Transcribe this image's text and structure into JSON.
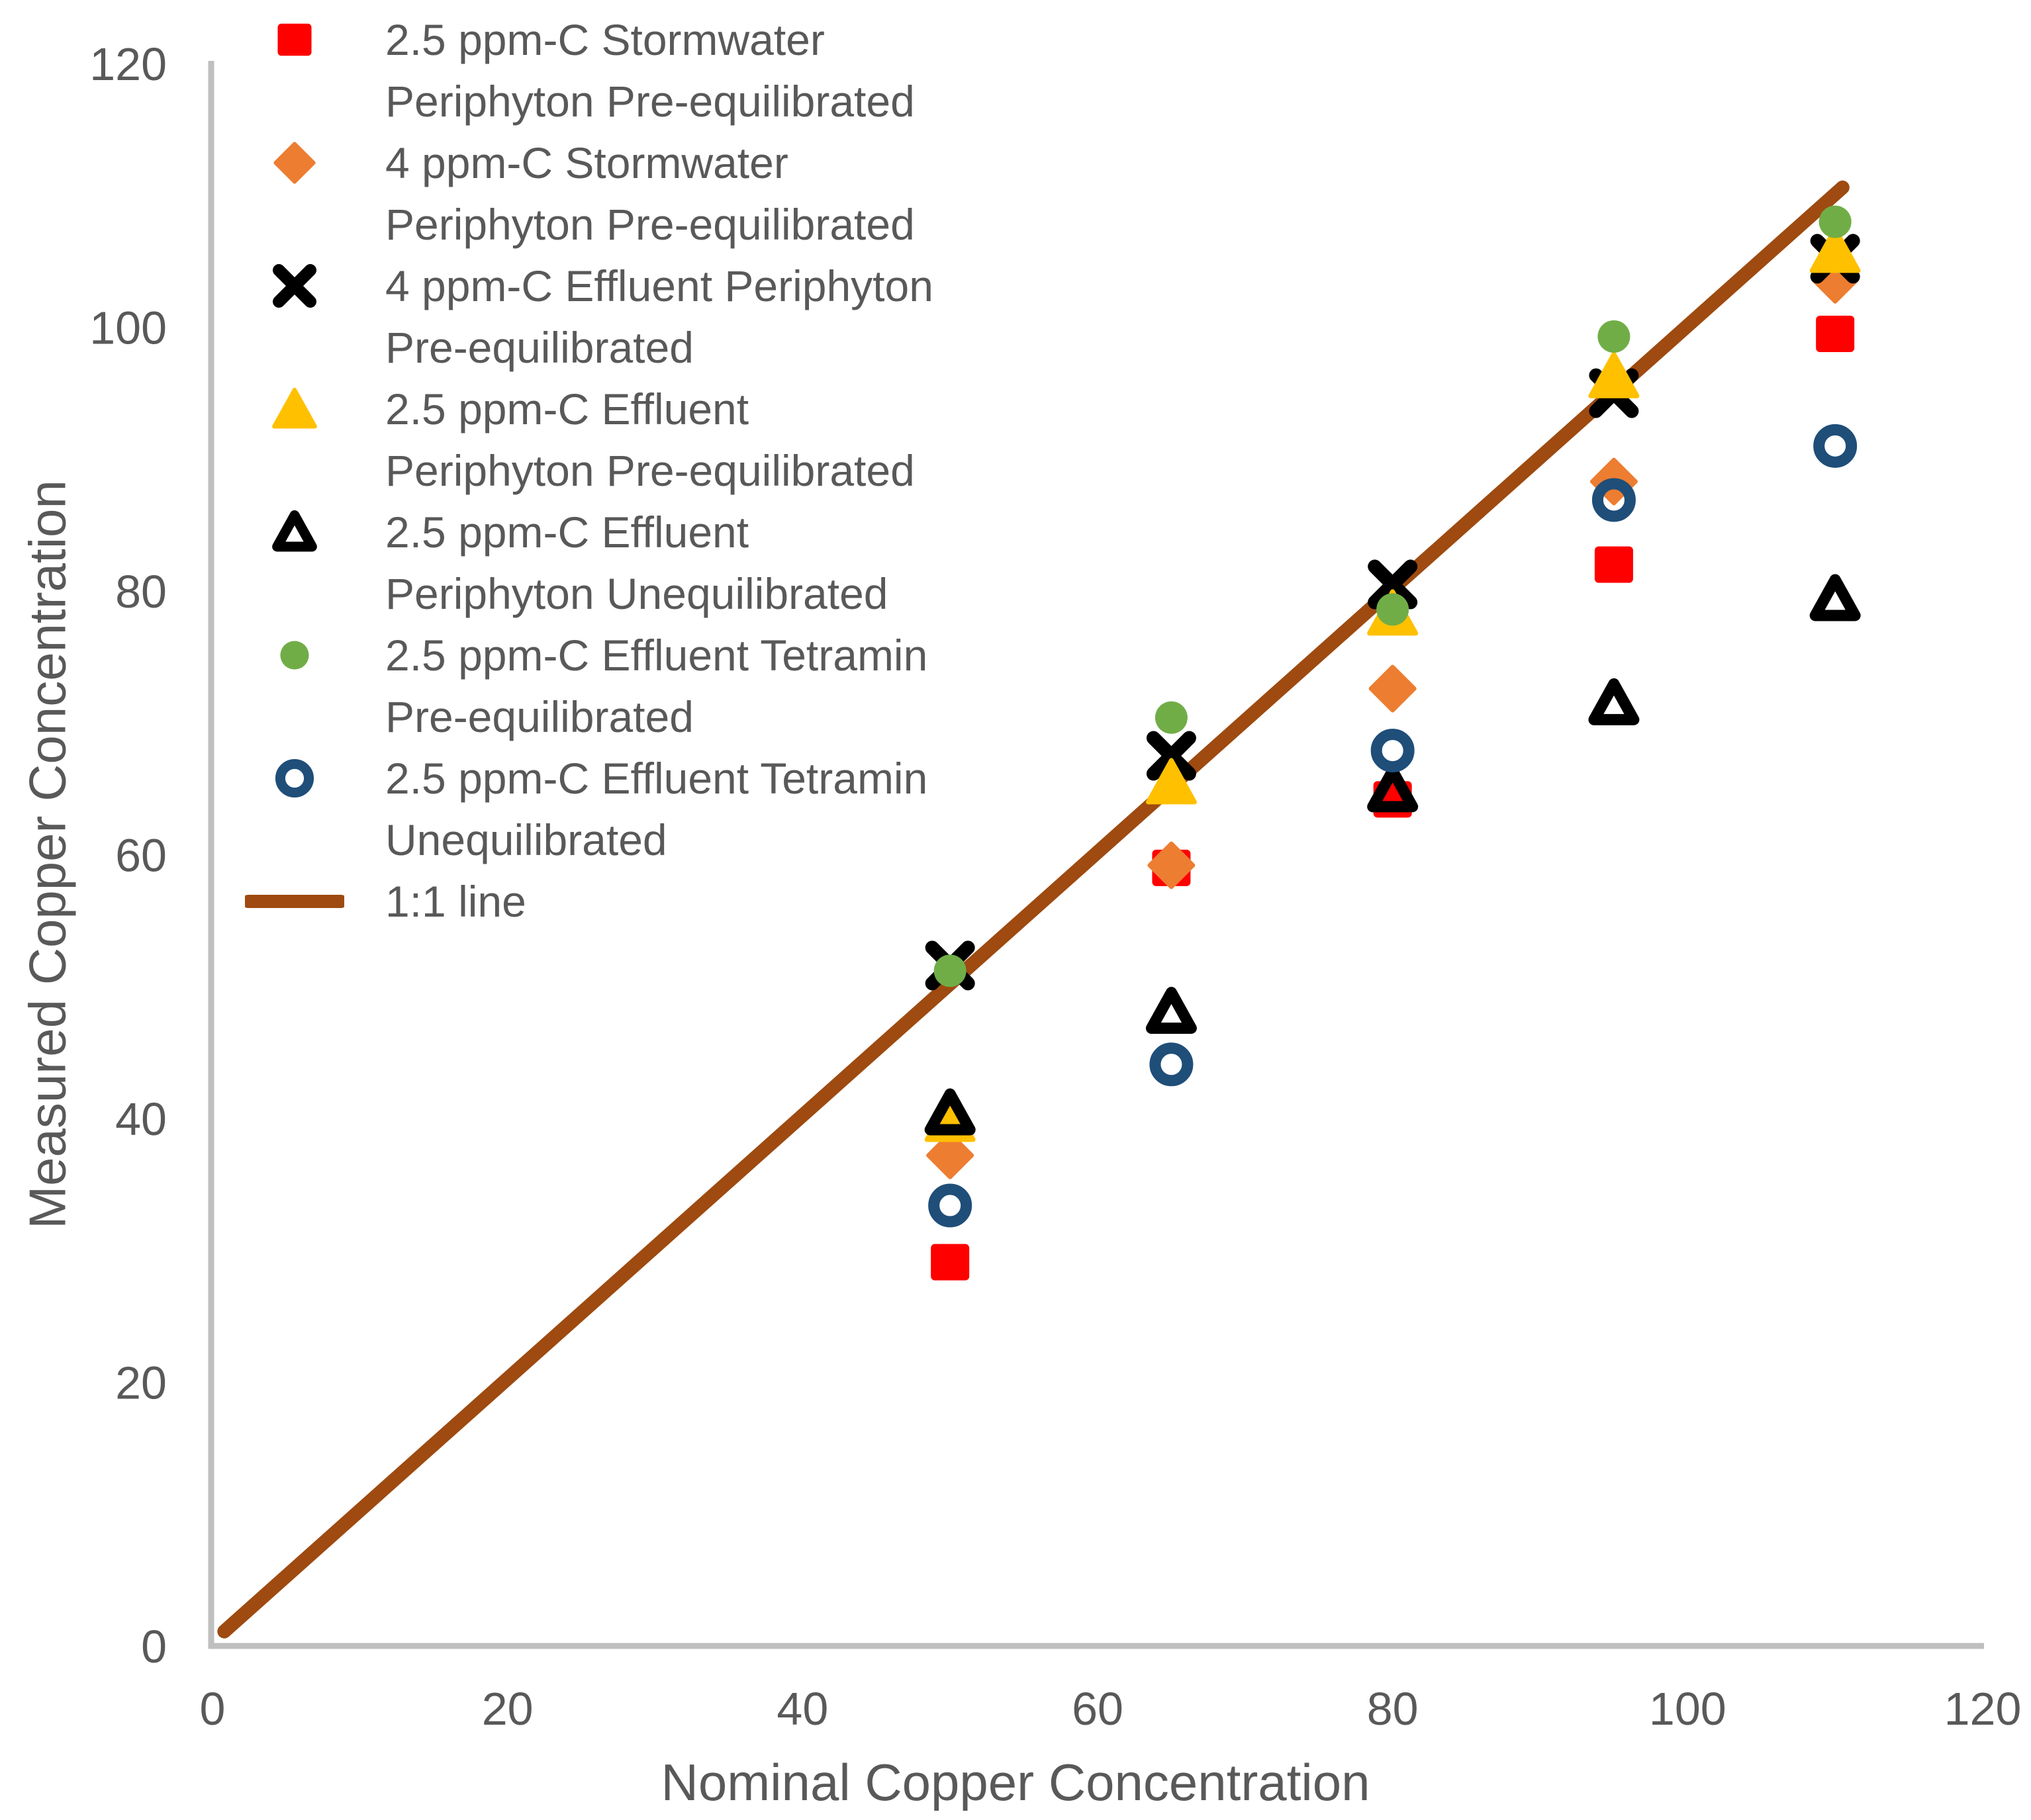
{
  "chart_data": {
    "type": "scatter",
    "title": "",
    "xlabel": "Nominal Copper Concentration",
    "ylabel": "Measured Copper Concentration",
    "xlim": [
      0,
      120
    ],
    "ylim": [
      0,
      120
    ],
    "x_ticks": [
      0,
      20,
      40,
      60,
      80,
      100,
      120
    ],
    "y_ticks": [
      0,
      20,
      40,
      60,
      80,
      100,
      120
    ],
    "grid": false,
    "legend_position": "upper-left-inside",
    "axis_color": "#BFBFBF",
    "text_color": "#595959",
    "series": [
      {
        "name": "2.5 ppm-C Stormwater Periphyton Pre-equilibrated",
        "legend_lines": [
          "2.5 ppm-C Stormwater",
          "Periphyton Pre-equilibrated"
        ],
        "marker": "square",
        "color": "#FF0000",
        "points": [
          [
            50,
            29.1
          ],
          [
            65,
            59.0
          ],
          [
            80,
            64.2
          ],
          [
            95,
            82.0
          ],
          [
            110,
            99.5
          ]
        ]
      },
      {
        "name": "4 ppm-C Stormwater Periphyton Pre-equilibrated",
        "legend_lines": [
          "4 ppm-C Stormwater",
          "Periphyton Pre-equilibrated"
        ],
        "marker": "diamond",
        "color": "#ED7D31",
        "points": [
          [
            50,
            37.2
          ],
          [
            65,
            59.2
          ],
          [
            80,
            72.6
          ],
          [
            95,
            88.3
          ],
          [
            110,
            103.6
          ]
        ]
      },
      {
        "name": "4 ppm-C Effluent Periphyton Pre-equilibrated",
        "legend_lines": [
          "4 ppm-C Effluent Periphyton",
          "Pre-equilibrated"
        ],
        "marker": "x",
        "color": "#000000",
        "points": [
          [
            50,
            51.6
          ],
          [
            65,
            67.5
          ],
          [
            80,
            80.5
          ],
          [
            95,
            95.0
          ],
          [
            110,
            105.2
          ]
        ]
      },
      {
        "name": "2.5 ppm-C Effluent Periphyton Pre-equilibrated",
        "legend_lines": [
          "2.5 ppm-C Effluent",
          "Periphyton Pre-equilibrated"
        ],
        "marker": "triangle",
        "color": "#FFC000",
        "points": [
          [
            50,
            39.9
          ],
          [
            65,
            65.5
          ],
          [
            80,
            78.3
          ],
          [
            95,
            96.3
          ],
          [
            110,
            105.8
          ]
        ]
      },
      {
        "name": "2.5 ppm-C Effluent Periphyton Unequilibrated",
        "legend_lines": [
          "2.5 ppm-C Effluent",
          "Periphyton Unequilibrated"
        ],
        "marker": "triangle-open",
        "color": "#000000",
        "points": [
          [
            50,
            40.4
          ],
          [
            65,
            48.1
          ],
          [
            80,
            64.9
          ],
          [
            95,
            71.5
          ],
          [
            110,
            79.4
          ]
        ]
      },
      {
        "name": "2.5 ppm-C Effluent Tetramin Pre-equilibrated",
        "legend_lines": [
          "2.5 ppm-C Effluent Tetramin",
          "Pre-equilibrated"
        ],
        "marker": "circle",
        "color": "#70AD47",
        "points": [
          [
            50,
            51.2
          ],
          [
            65,
            70.4
          ],
          [
            80,
            78.6
          ],
          [
            95,
            99.3
          ],
          [
            110,
            108.0
          ]
        ]
      },
      {
        "name": "2.5 ppm-C Effluent Tetramin Unequilibrated",
        "legend_lines": [
          "2.5 ppm-C Effluent Tetramin",
          "Unequilibrated"
        ],
        "marker": "circle-open",
        "color": "#1F4E79",
        "points": [
          [
            50,
            33.4
          ],
          [
            65,
            44.1
          ],
          [
            80,
            67.9
          ],
          [
            95,
            86.9
          ],
          [
            110,
            91.0
          ]
        ]
      }
    ],
    "line_series": {
      "name": "1:1 line",
      "legend_lines": [
        "1:1 line"
      ],
      "color": "#9E4A10",
      "points": [
        [
          0.8,
          1.1
        ],
        [
          110.5,
          110.6
        ]
      ]
    }
  }
}
